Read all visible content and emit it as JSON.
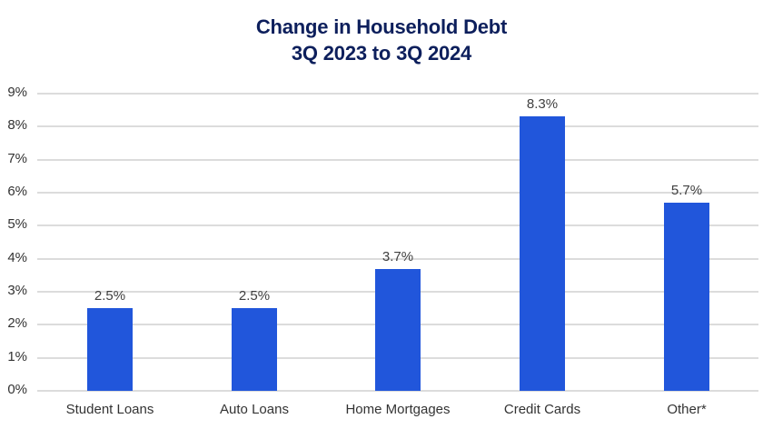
{
  "title": {
    "line1": "Change in Household Debt",
    "line2": "3Q 2023 to 3Q 2024"
  },
  "colors": {
    "bar": "#2156db",
    "title": "#0d1f5c",
    "grid": "#dcdcdc"
  },
  "chart_data": {
    "type": "bar",
    "title": "Change in Household Debt 3Q 2023 to 3Q 2024",
    "xlabel": "",
    "ylabel": "",
    "categories": [
      "Student Loans",
      "Auto Loans",
      "Home Mortgages",
      "Credit Cards",
      "Other*"
    ],
    "values": [
      2.5,
      2.5,
      3.7,
      8.3,
      5.7
    ],
    "value_labels": [
      "2.5%",
      "2.5%",
      "3.7%",
      "8.3%",
      "5.7%"
    ],
    "ylim": [
      0,
      9
    ],
    "yticks": [
      "0%",
      "1%",
      "2%",
      "3%",
      "4%",
      "5%",
      "6%",
      "7%",
      "8%",
      "9%"
    ],
    "grid": true,
    "legend": null
  }
}
